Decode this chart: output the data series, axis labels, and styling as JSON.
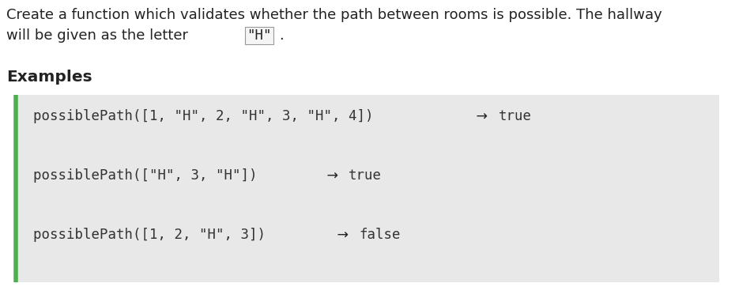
{
  "bg_color": "#ffffff",
  "desc_line1": "Create a function which validates whether the path between rooms is possible. The hallway",
  "desc_line2_before": "will be given as the letter ",
  "desc_line2_code": "\"H\"",
  "desc_line2_after": ".",
  "examples_label": "Examples",
  "code_bg": "#e8e8e8",
  "code_border_color": "#4caf50",
  "code_entries": [
    {
      "code": "possiblePath([1, \"H\", 2, \"H\", 3, \"H\", 4])",
      "result": "true"
    },
    {
      "code": "possiblePath([\"H\", 3, \"H\"])",
      "result": "true"
    },
    {
      "code": "possiblePath([1, 2, \"H\", 3])",
      "result": "false"
    }
  ],
  "arrow": "→",
  "text_color": "#222222",
  "code_color": "#333333",
  "mono_font": "DejaVu Sans Mono",
  "normal_font": "DejaVu Sans",
  "desc_fontsize": 13.0,
  "examples_fontsize": 14.5,
  "code_fontsize": 12.5
}
